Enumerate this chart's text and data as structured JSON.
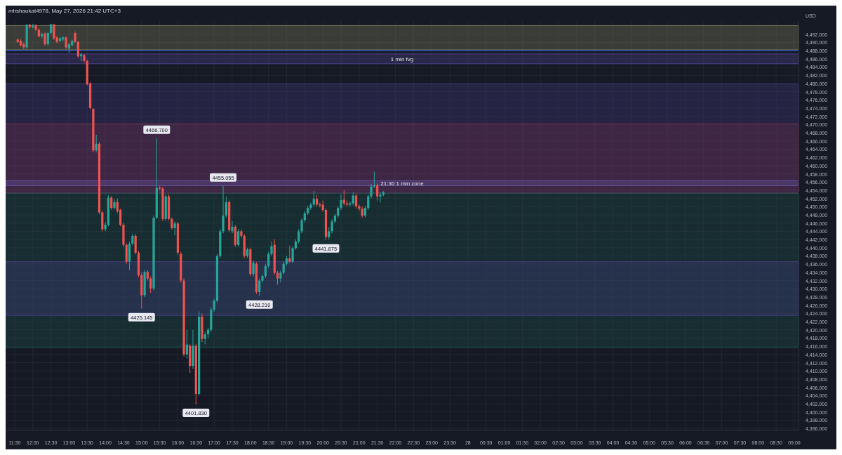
{
  "chart_data": {
    "type": "candlestick",
    "title": "mhshaukat4978, May 27, 2026 21:42 UTC+3",
    "ylabel": "USD",
    "grid": true,
    "x": [
      "2026-05-27T11:35",
      "2026-05-27T11:40",
      "2026-05-27T11:45",
      "2026-05-27T11:50",
      "2026-05-27T11:55",
      "2026-05-27T12:00",
      "2026-05-27T12:05",
      "2026-05-27T12:10",
      "2026-05-27T12:15",
      "2026-05-27T12:20",
      "2026-05-27T12:25",
      "2026-05-27T12:30",
      "2026-05-27T12:35",
      "2026-05-27T12:40",
      "2026-05-27T12:45",
      "2026-05-27T12:50",
      "2026-05-27T12:55",
      "2026-05-27T13:00",
      "2026-05-27T13:05",
      "2026-05-27T13:10",
      "2026-05-27T13:15",
      "2026-05-27T13:20",
      "2026-05-27T13:25",
      "2026-05-27T13:30",
      "2026-05-27T13:35",
      "2026-05-27T13:40",
      "2026-05-27T13:45",
      "2026-05-27T13:50",
      "2026-05-27T13:55",
      "2026-05-27T14:00",
      "2026-05-27T14:05",
      "2026-05-27T14:10",
      "2026-05-27T14:15",
      "2026-05-27T14:20",
      "2026-05-27T14:25",
      "2026-05-27T14:30",
      "2026-05-27T14:35",
      "2026-05-27T14:40",
      "2026-05-27T14:45",
      "2026-05-27T14:50",
      "2026-05-27T14:55",
      "2026-05-27T15:00",
      "2026-05-27T15:05",
      "2026-05-27T15:10",
      "2026-05-27T15:15",
      "2026-05-27T15:20",
      "2026-05-27T15:25",
      "2026-05-27T15:30",
      "2026-05-27T15:35",
      "2026-05-27T15:40",
      "2026-05-27T15:45",
      "2026-05-27T15:50",
      "2026-05-27T15:55",
      "2026-05-27T16:00",
      "2026-05-27T16:05",
      "2026-05-27T16:10",
      "2026-05-27T16:15",
      "2026-05-27T16:20",
      "2026-05-27T16:25",
      "2026-05-27T16:30",
      "2026-05-27T16:35",
      "2026-05-27T16:40",
      "2026-05-27T16:45",
      "2026-05-27T16:50",
      "2026-05-27T16:55",
      "2026-05-27T17:00",
      "2026-05-27T17:05",
      "2026-05-27T17:10",
      "2026-05-27T17:15",
      "2026-05-27T17:20",
      "2026-05-27T17:25",
      "2026-05-27T17:30",
      "2026-05-27T17:35",
      "2026-05-27T17:40",
      "2026-05-27T17:45",
      "2026-05-27T17:50",
      "2026-05-27T17:55",
      "2026-05-27T18:00",
      "2026-05-27T18:05",
      "2026-05-27T18:10",
      "2026-05-27T18:15",
      "2026-05-27T18:20",
      "2026-05-27T18:25",
      "2026-05-27T18:30",
      "2026-05-27T18:35",
      "2026-05-27T18:40",
      "2026-05-27T18:45",
      "2026-05-27T18:50",
      "2026-05-27T18:55",
      "2026-05-27T19:00",
      "2026-05-27T19:05",
      "2026-05-27T19:10",
      "2026-05-27T19:15",
      "2026-05-27T19:20",
      "2026-05-27T19:25",
      "2026-05-27T19:30",
      "2026-05-27T19:35",
      "2026-05-27T19:40",
      "2026-05-27T19:45",
      "2026-05-27T19:50",
      "2026-05-27T19:55",
      "2026-05-27T20:00",
      "2026-05-27T20:05",
      "2026-05-27T20:10",
      "2026-05-27T20:15",
      "2026-05-27T20:20",
      "2026-05-27T20:25",
      "2026-05-27T20:30",
      "2026-05-27T20:35",
      "2026-05-27T20:40",
      "2026-05-27T20:45",
      "2026-05-27T20:50",
      "2026-05-27T20:55",
      "2026-05-27T21:00",
      "2026-05-27T21:05",
      "2026-05-27T21:10",
      "2026-05-27T21:15",
      "2026-05-27T21:20",
      "2026-05-27T21:25",
      "2026-05-27T21:30",
      "2026-05-27T21:35",
      "2026-05-27T21:40"
    ],
    "ohlc": [
      [
        4490.7,
        4491.0,
        4489.8,
        4490.1
      ],
      [
        4490.4,
        4490.8,
        4489.0,
        4489.3
      ],
      [
        4489.6,
        4490.0,
        4488.4,
        4488.8
      ],
      [
        4488.8,
        4494.5,
        4488.4,
        4494.3
      ],
      [
        4494.3,
        4494.5,
        4493.4,
        4493.7
      ],
      [
        4493.7,
        4494.5,
        4493.4,
        4494.2
      ],
      [
        4494.2,
        4494.5,
        4492.8,
        4493.1
      ],
      [
        4493.1,
        4493.4,
        4491.2,
        4491.5
      ],
      [
        4491.5,
        4492.4,
        4491.0,
        4492.1
      ],
      [
        4492.1,
        4492.5,
        4489.2,
        4489.6
      ],
      [
        4489.6,
        4492.6,
        4489.2,
        4492.3
      ],
      [
        4492.3,
        4494.5,
        4492.0,
        4494.4
      ],
      [
        4494.4,
        4494.5,
        4490.6,
        4491.0
      ],
      [
        4491.2,
        4491.6,
        4489.7,
        4490.1
      ],
      [
        4490.4,
        4491.3,
        4490.0,
        4491.0
      ],
      [
        4490.7,
        4491.6,
        4490.3,
        4491.2
      ],
      [
        4491.2,
        4491.5,
        4488.4,
        4488.8
      ],
      [
        4488.5,
        4489.9,
        4487.5,
        4489.6
      ],
      [
        4489.3,
        4490.7,
        4489.0,
        4490.4
      ],
      [
        4492.3,
        4492.7,
        4489.8,
        4490.1
      ],
      [
        4490.1,
        4490.4,
        4486.2,
        4486.6
      ],
      [
        4486.6,
        4487.5,
        4485.4,
        4487.1
      ],
      [
        4486.9,
        4487.2,
        4485.1,
        4485.5
      ],
      [
        4485.5,
        4485.8,
        4479.5,
        4479.8
      ],
      [
        4480.0,
        4480.3,
        4473.7,
        4474.0
      ],
      [
        4473.8,
        4474.0,
        4463.2,
        4463.7
      ],
      [
        4463.7,
        4467.5,
        4463.2,
        4465.3
      ],
      [
        4465.3,
        4465.8,
        4448.1,
        4448.6
      ],
      [
        4448.6,
        4449.0,
        4444.0,
        4444.5
      ],
      [
        4444.5,
        4446.2,
        4444.0,
        4445.6
      ],
      [
        4445.6,
        4452.8,
        4445.2,
        4452.2
      ],
      [
        4452.2,
        4452.6,
        4449.2,
        4449.7
      ],
      [
        4449.7,
        4451.8,
        4449.3,
        4451.1
      ],
      [
        4451.1,
        4452.0,
        4448.5,
        4448.9
      ],
      [
        4449.2,
        4449.5,
        4445.2,
        4445.6
      ],
      [
        4445.6,
        4446.0,
        4440.2,
        4440.7
      ],
      [
        4440.7,
        4441.0,
        4436.1,
        4436.6
      ],
      [
        4436.6,
        4441.5,
        4434.5,
        4441.0
      ],
      [
        4441.0,
        4443.4,
        4440.6,
        4442.9
      ],
      [
        4442.9,
        4443.3,
        4438.4,
        4438.8
      ],
      [
        4438.8,
        4439.2,
        4432.8,
        4433.3
      ],
      [
        4433.3,
        4434.0,
        4425.145,
        4428.4
      ],
      [
        4428.4,
        4434.6,
        4428.0,
        4434.1
      ],
      [
        4434.1,
        4434.5,
        4432.0,
        4432.5
      ],
      [
        4432.5,
        4433.0,
        4429.0,
        4430.1
      ],
      [
        4430.1,
        4447.8,
        4429.6,
        4447.3
      ],
      [
        4447.3,
        4466.7,
        4447.0,
        4454.6
      ],
      [
        4454.6,
        4455.0,
        4454.0,
        4454.4
      ],
      [
        4454.4,
        4454.8,
        4446.5,
        4447.0
      ],
      [
        4447.0,
        4453.0,
        4446.5,
        4452.5
      ],
      [
        4452.5,
        4453.0,
        4446.6,
        4447.0
      ],
      [
        4447.0,
        4447.4,
        4444.4,
        4444.8
      ],
      [
        4444.8,
        4446.4,
        4443.0,
        4445.9
      ],
      [
        4445.9,
        4446.3,
        4438.3,
        4438.8
      ],
      [
        4438.5,
        4439.0,
        4431.5,
        4432.0
      ],
      [
        4432.0,
        4432.5,
        4413.5,
        4414.0
      ],
      [
        4414.0,
        4420.0,
        4413.0,
        4416.4
      ],
      [
        4416.1,
        4416.5,
        4409.5,
        4411.2
      ],
      [
        4411.2,
        4420.0,
        4410.5,
        4416.1
      ],
      [
        4416.1,
        4416.6,
        4401.83,
        4404.4
      ],
      [
        4404.4,
        4424.5,
        4404.0,
        4423.2
      ],
      [
        4423.2,
        4424.0,
        4417.0,
        4417.8
      ],
      [
        4417.8,
        4419.5,
        4416.5,
        4418.9
      ],
      [
        4418.9,
        4420.5,
        4418.0,
        4420.0
      ],
      [
        4420.0,
        4425.5,
        4419.5,
        4424.9
      ],
      [
        4424.9,
        4427.6,
        4424.4,
        4427.1
      ],
      [
        4427.1,
        4438.5,
        4426.6,
        4438.0
      ],
      [
        4438.0,
        4444.5,
        4437.5,
        4444.0
      ],
      [
        4444.0,
        4455.055,
        4443.5,
        4447.8
      ],
      [
        4447.8,
        4452.5,
        4447.3,
        4451.1
      ],
      [
        4451.1,
        4451.5,
        4443.8,
        4444.3
      ],
      [
        4444.0,
        4446.5,
        4443.5,
        4445.1
      ],
      [
        4445.1,
        4445.5,
        4440.2,
        4440.7
      ],
      [
        4440.7,
        4444.5,
        4440.2,
        4444.0
      ],
      [
        4444.0,
        4444.4,
        4442.4,
        4442.9
      ],
      [
        4442.9,
        4443.3,
        4437.5,
        4438.0
      ],
      [
        4438.0,
        4440.0,
        4437.5,
        4439.6
      ],
      [
        4439.6,
        4440.0,
        4433.1,
        4433.6
      ],
      [
        4433.6,
        4436.8,
        4433.0,
        4436.3
      ],
      [
        4436.1,
        4436.5,
        4428.7,
        4429.2
      ],
      [
        4429.2,
        4432.5,
        4428.21,
        4432.0
      ],
      [
        4432.0,
        4433.5,
        4431.5,
        4433.1
      ],
      [
        4433.1,
        4436.0,
        4432.6,
        4435.5
      ],
      [
        4435.5,
        4439.0,
        4435.0,
        4438.5
      ],
      [
        4438.5,
        4441.5,
        4438.0,
        4440.4
      ],
      [
        4440.7,
        4442.0,
        4433.4,
        4433.9
      ],
      [
        4433.9,
        4434.3,
        4431.0,
        4432.5
      ],
      [
        4432.5,
        4434.4,
        4431.5,
        4433.9
      ],
      [
        4433.9,
        4436.6,
        4433.5,
        4436.1
      ],
      [
        4436.1,
        4437.9,
        4435.7,
        4437.4
      ],
      [
        4437.4,
        4440.5,
        4436.2,
        4436.6
      ],
      [
        4436.6,
        4440.4,
        4436.2,
        4439.9
      ],
      [
        4439.9,
        4442.0,
        4439.5,
        4441.5
      ],
      [
        4441.5,
        4444.5,
        4441.0,
        4444.0
      ],
      [
        4444.0,
        4447.2,
        4443.5,
        4446.7
      ],
      [
        4446.7,
        4448.9,
        4446.2,
        4448.4
      ],
      [
        4448.4,
        4450.2,
        4448.0,
        4449.7
      ],
      [
        4449.7,
        4451.0,
        4449.2,
        4450.5
      ],
      [
        4450.5,
        4453.8,
        4450.0,
        4451.9
      ],
      [
        4451.9,
        4452.8,
        4450.0,
        4450.5
      ],
      [
        4450.5,
        4451.0,
        4449.8,
        4450.3
      ],
      [
        4450.5,
        4451.5,
        4448.7,
        4449.2
      ],
      [
        4449.2,
        4449.6,
        4441.875,
        4442.6
      ],
      [
        4442.6,
        4445.0,
        4442.0,
        4444.0
      ],
      [
        4444.0,
        4446.9,
        4443.5,
        4446.4
      ],
      [
        4446.4,
        4448.3,
        4446.0,
        4447.8
      ],
      [
        4447.8,
        4450.2,
        4447.3,
        4449.7
      ],
      [
        4449.7,
        4453.0,
        4449.2,
        4451.6
      ],
      [
        4451.7,
        4454.0,
        4450.3,
        4450.8
      ],
      [
        4450.8,
        4451.5,
        4450.0,
        4450.5
      ],
      [
        4450.5,
        4451.3,
        4450.0,
        4450.8
      ],
      [
        4450.8,
        4453.5,
        4450.3,
        4452.7
      ],
      [
        4452.7,
        4453.2,
        4449.6,
        4450.1
      ],
      [
        4450.1,
        4450.5,
        4449.0,
        4449.5
      ],
      [
        4449.5,
        4450.0,
        4447.3,
        4447.8
      ],
      [
        4447.8,
        4450.2,
        4447.3,
        4449.7
      ],
      [
        4449.7,
        4453.0,
        4449.2,
        4452.5
      ],
      [
        4452.5,
        4455.5,
        4452.0,
        4454.9
      ],
      [
        4454.9,
        4458.5,
        4454.5,
        4455.2
      ],
      [
        4455.2,
        4455.6,
        4451.5,
        4452.5
      ],
      [
        4452.5,
        4453.5,
        4451.0,
        4452.9
      ],
      [
        4452.9,
        4453.8,
        4452.5,
        4453.5
      ]
    ],
    "xlim": [
      "2026-05-27T11:15",
      "2026-05-28T09:07"
    ],
    "xticks": [
      {
        "value": "2026-05-27T11:30",
        "label": "11:30"
      },
      {
        "value": "2026-05-27T12:00",
        "label": "12:00"
      },
      {
        "value": "2026-05-27T12:30",
        "label": "12:30"
      },
      {
        "value": "2026-05-27T13:00",
        "label": "13:00"
      },
      {
        "value": "2026-05-27T13:30",
        "label": "13:30"
      },
      {
        "value": "2026-05-27T14:00",
        "label": "14:00"
      },
      {
        "value": "2026-05-27T14:30",
        "label": "14:30"
      },
      {
        "value": "2026-05-27T15:00",
        "label": "15:00"
      },
      {
        "value": "2026-05-27T15:30",
        "label": "15:30"
      },
      {
        "value": "2026-05-27T16:00",
        "label": "16:00"
      },
      {
        "value": "2026-05-27T16:30",
        "label": "16:30"
      },
      {
        "value": "2026-05-27T17:00",
        "label": "17:00"
      },
      {
        "value": "2026-05-27T17:30",
        "label": "17:30"
      },
      {
        "value": "2026-05-27T18:00",
        "label": "18:00"
      },
      {
        "value": "2026-05-27T18:30",
        "label": "18:30"
      },
      {
        "value": "2026-05-27T19:00",
        "label": "19:00"
      },
      {
        "value": "2026-05-27T19:30",
        "label": "19:30"
      },
      {
        "value": "2026-05-27T20:00",
        "label": "20:00"
      },
      {
        "value": "2026-05-27T20:30",
        "label": "20:30"
      },
      {
        "value": "2026-05-27T21:00",
        "label": "21:00"
      },
      {
        "value": "2026-05-27T21:30",
        "label": "21:30"
      },
      {
        "value": "2026-05-27T22:00",
        "label": "22:00"
      },
      {
        "value": "2026-05-27T22:30",
        "label": "22:30"
      },
      {
        "value": "2026-05-27T23:00",
        "label": "23:00"
      },
      {
        "value": "2026-05-27T23:30",
        "label": "23:30"
      },
      {
        "value": "2026-05-28T00:00",
        "label": "28"
      },
      {
        "value": "2026-05-28T00:30",
        "label": "00:30"
      },
      {
        "value": "2026-05-28T01:00",
        "label": "01:00"
      },
      {
        "value": "2026-05-28T01:30",
        "label": "01:30"
      },
      {
        "value": "2026-05-28T02:00",
        "label": "02:00"
      },
      {
        "value": "2026-05-28T02:30",
        "label": "02:30"
      },
      {
        "value": "2026-05-28T03:00",
        "label": "03:00"
      },
      {
        "value": "2026-05-28T03:30",
        "label": "03:30"
      },
      {
        "value": "2026-05-28T04:00",
        "label": "04:00"
      },
      {
        "value": "2026-05-28T04:30",
        "label": "04:30"
      },
      {
        "value": "2026-05-28T05:00",
        "label": "05:00"
      },
      {
        "value": "2026-05-28T05:30",
        "label": "05:30"
      },
      {
        "value": "2026-05-28T06:00",
        "label": "06:00"
      },
      {
        "value": "2026-05-28T06:30",
        "label": "06:30"
      },
      {
        "value": "2026-05-28T07:00",
        "label": "07:00"
      },
      {
        "value": "2026-05-28T07:30",
        "label": "07:30"
      },
      {
        "value": "2026-05-28T08:00",
        "label": "08:00"
      },
      {
        "value": "2026-05-28T08:30",
        "label": "08:30"
      },
      {
        "value": "2026-05-28T09:00",
        "label": "09:00"
      }
    ],
    "ylim": [
      4395.5,
      4495.2
    ],
    "yticks": [
      {
        "value": 4396,
        "label": "4,396.000"
      },
      {
        "value": 4398,
        "label": "4,398.000"
      },
      {
        "value": 4400,
        "label": "4,400.000"
      },
      {
        "value": 4402,
        "label": "4,402.000"
      },
      {
        "value": 4404,
        "label": "4,404.000"
      },
      {
        "value": 4406,
        "label": "4,406.000"
      },
      {
        "value": 4408,
        "label": "4,408.000"
      },
      {
        "value": 4410,
        "label": "4,410.000"
      },
      {
        "value": 4412,
        "label": "4,412.000"
      },
      {
        "value": 4414,
        "label": "4,414.000"
      },
      {
        "value": 4416,
        "label": "4,416.000"
      },
      {
        "value": 4418,
        "label": "4,418.000"
      },
      {
        "value": 4420,
        "label": "4,420.000"
      },
      {
        "value": 4422,
        "label": "4,422.000"
      },
      {
        "value": 4424,
        "label": "4,424.000"
      },
      {
        "value": 4426,
        "label": "4,426.000"
      },
      {
        "value": 4428,
        "label": "4,428.000"
      },
      {
        "value": 4430,
        "label": "4,430.000"
      },
      {
        "value": 4432,
        "label": "4,432.000"
      },
      {
        "value": 4434,
        "label": "4,434.000"
      },
      {
        "value": 4436,
        "label": "4,436.000"
      },
      {
        "value": 4438,
        "label": "4,438.000"
      },
      {
        "value": 4440,
        "label": "4,440.000"
      },
      {
        "value": 4442,
        "label": "4,442.000"
      },
      {
        "value": 4444,
        "label": "4,444.000"
      },
      {
        "value": 4446,
        "label": "4,446.000"
      },
      {
        "value": 4448,
        "label": "4,448.000"
      },
      {
        "value": 4450,
        "label": "4,450.000"
      },
      {
        "value": 4452,
        "label": "4,452.000"
      },
      {
        "value": 4454,
        "label": "4,454.000"
      },
      {
        "value": 4456,
        "label": "4,456.000"
      },
      {
        "value": 4458,
        "label": "4,458.000"
      },
      {
        "value": 4460,
        "label": "4,460.000"
      },
      {
        "value": 4462,
        "label": "4,462.000"
      },
      {
        "value": 4464,
        "label": "4,464.000"
      },
      {
        "value": 4466,
        "label": "4,466.000"
      },
      {
        "value": 4468,
        "label": "4,468.000"
      },
      {
        "value": 4470,
        "label": "4,470.000"
      },
      {
        "value": 4472,
        "label": "4,472.000"
      },
      {
        "value": 4474,
        "label": "4,474.000"
      },
      {
        "value": 4476,
        "label": "4,476.000"
      },
      {
        "value": 4478,
        "label": "4,478.000"
      },
      {
        "value": 4480,
        "label": "4,480.000"
      },
      {
        "value": 4482,
        "label": "4,482.000"
      },
      {
        "value": 4484,
        "label": "4,484.000"
      },
      {
        "value": 4486,
        "label": "4,486.000"
      },
      {
        "value": 4488,
        "label": "4,488.000"
      },
      {
        "value": 4490,
        "label": "4,490.000"
      },
      {
        "value": 4492,
        "label": "4,492.000"
      }
    ],
    "bands": [
      {
        "axis": "y",
        "from": 4488.2,
        "to": 4494.1,
        "color": "#8a8a62"
      },
      {
        "axis": "y",
        "from": 4484.8,
        "to": 4487.2,
        "label": "1 min fvg",
        "color": "#5b4a9e"
      },
      {
        "axis": "y",
        "from": 4453.3,
        "to": 4479.9,
        "color": "#4a3d8a"
      },
      {
        "axis": "y",
        "from": 4453.3,
        "to": 4470.2,
        "color": "#7a2e4a"
      },
      {
        "axis": "y",
        "from": 4415.7,
        "to": 4453.3,
        "color": "#1e5a50"
      },
      {
        "axis": "y",
        "from": 4455.1,
        "to": 4456.3,
        "label": "21:30 1 min zone",
        "color": "#6a5ab0"
      },
      {
        "axis": "y",
        "from": 4423.5,
        "to": 4436.6,
        "color": "#4a3d8a"
      }
    ],
    "ref_lines": [
      {
        "axis": "y",
        "value": 4488.0,
        "color": "#2962ff"
      }
    ],
    "annotations": [
      {
        "text": "4466.700",
        "x": "2026-05-27T15:25",
        "y": 4466.7
      },
      {
        "text": "4425.145",
        "x": "2026-05-27T15:00",
        "y": 4425.145
      },
      {
        "text": "4401.830",
        "x": "2026-05-27T16:30",
        "y": 4401.83
      },
      {
        "text": "4455.055",
        "x": "2026-05-27T17:15",
        "y": 4455.055
      },
      {
        "text": "4428.210",
        "x": "2026-05-27T18:15",
        "y": 4428.21
      },
      {
        "text": "4441.875",
        "x": "2026-05-27T20:05",
        "y": 4441.875
      }
    ]
  }
}
